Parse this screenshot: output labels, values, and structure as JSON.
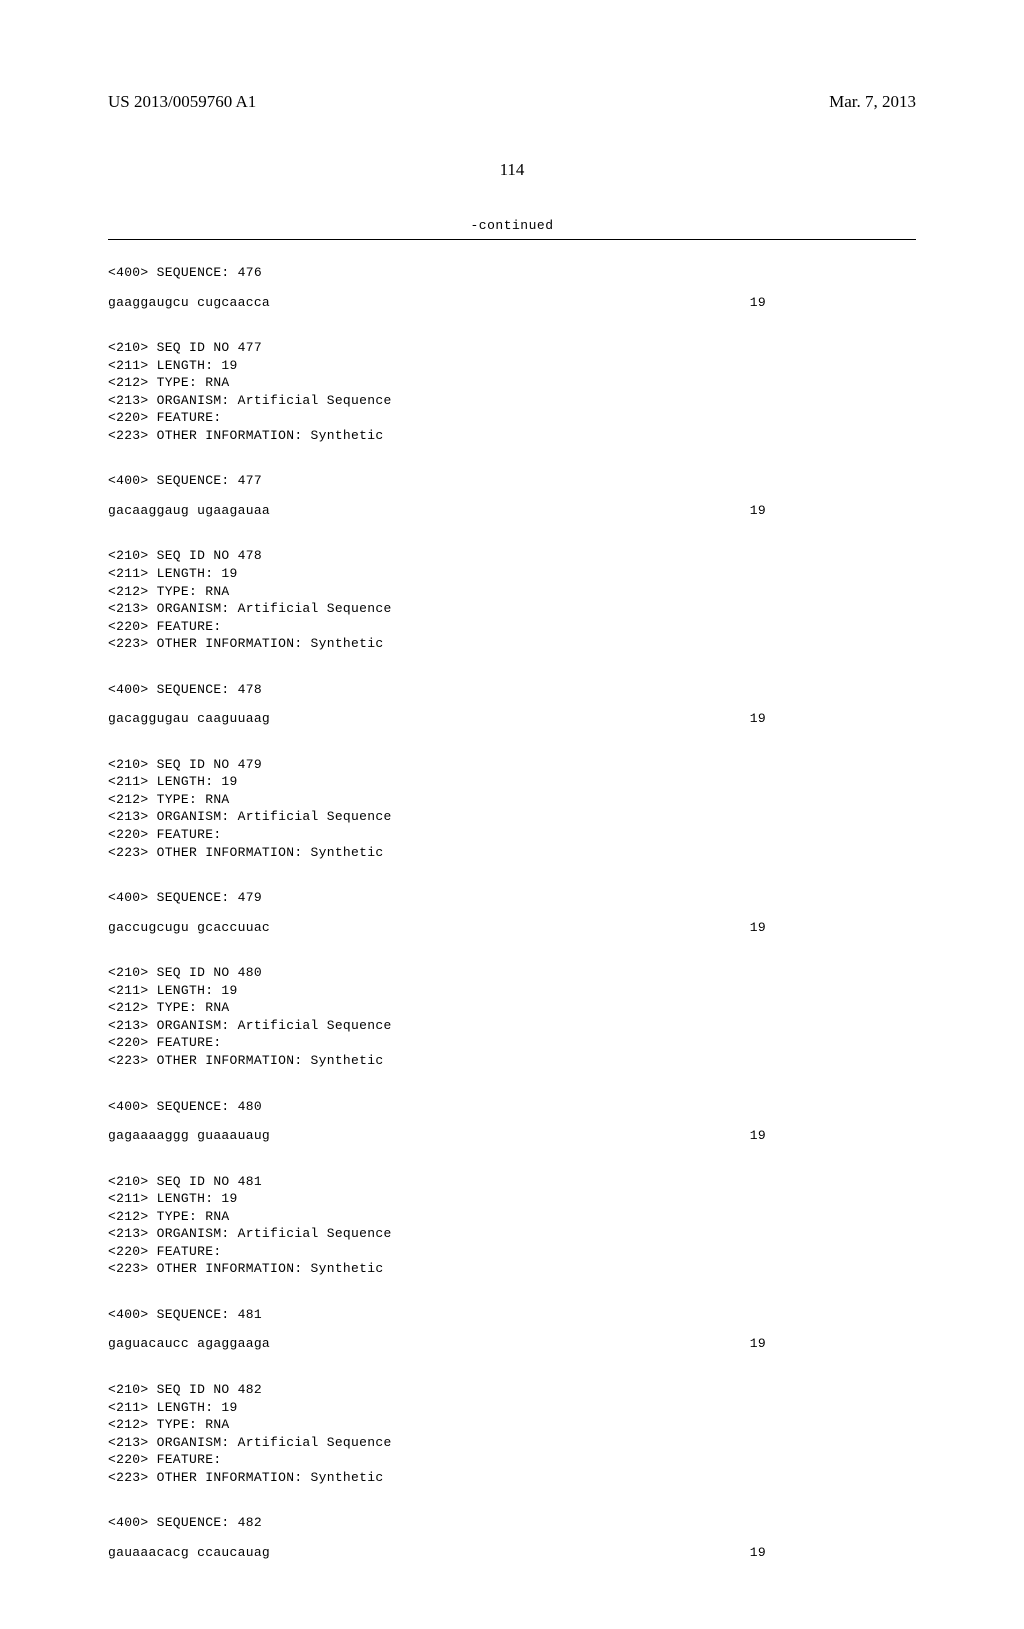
{
  "header": {
    "publication_number": "US 2013/0059760 A1",
    "publication_date": "Mar. 7, 2013"
  },
  "page_number": "114",
  "continued_label": "-continued",
  "entries": [
    {
      "seq_header": "<400> SEQUENCE: 476",
      "sequence": "gaaggaugcu cugcaacca",
      "length": "19",
      "meta": [
        "<210> SEQ ID NO 477",
        "<211> LENGTH: 19",
        "<212> TYPE: RNA",
        "<213> ORGANISM: Artificial Sequence",
        "<220> FEATURE:",
        "<223> OTHER INFORMATION: Synthetic"
      ]
    },
    {
      "seq_header": "<400> SEQUENCE: 477",
      "sequence": "gacaaggaug ugaagauaa",
      "length": "19",
      "meta": [
        "<210> SEQ ID NO 478",
        "<211> LENGTH: 19",
        "<212> TYPE: RNA",
        "<213> ORGANISM: Artificial Sequence",
        "<220> FEATURE:",
        "<223> OTHER INFORMATION: Synthetic"
      ]
    },
    {
      "seq_header": "<400> SEQUENCE: 478",
      "sequence": "gacaggugau caaguuaag",
      "length": "19",
      "meta": [
        "<210> SEQ ID NO 479",
        "<211> LENGTH: 19",
        "<212> TYPE: RNA",
        "<213> ORGANISM: Artificial Sequence",
        "<220> FEATURE:",
        "<223> OTHER INFORMATION: Synthetic"
      ]
    },
    {
      "seq_header": "<400> SEQUENCE: 479",
      "sequence": "gaccugcugu gcaccuuac",
      "length": "19",
      "meta": [
        "<210> SEQ ID NO 480",
        "<211> LENGTH: 19",
        "<212> TYPE: RNA",
        "<213> ORGANISM: Artificial Sequence",
        "<220> FEATURE:",
        "<223> OTHER INFORMATION: Synthetic"
      ]
    },
    {
      "seq_header": "<400> SEQUENCE: 480",
      "sequence": "gagaaaaggg guaaauaug",
      "length": "19",
      "meta": [
        "<210> SEQ ID NO 481",
        "<211> LENGTH: 19",
        "<212> TYPE: RNA",
        "<213> ORGANISM: Artificial Sequence",
        "<220> FEATURE:",
        "<223> OTHER INFORMATION: Synthetic"
      ]
    },
    {
      "seq_header": "<400> SEQUENCE: 481",
      "sequence": "gaguacaucc agaggaaga",
      "length": "19",
      "meta": [
        "<210> SEQ ID NO 482",
        "<211> LENGTH: 19",
        "<212> TYPE: RNA",
        "<213> ORGANISM: Artificial Sequence",
        "<220> FEATURE:",
        "<223> OTHER INFORMATION: Synthetic"
      ]
    },
    {
      "seq_header": "<400> SEQUENCE: 482",
      "sequence": "gauaaacacg ccaucauag",
      "length": "19",
      "meta": []
    }
  ]
}
